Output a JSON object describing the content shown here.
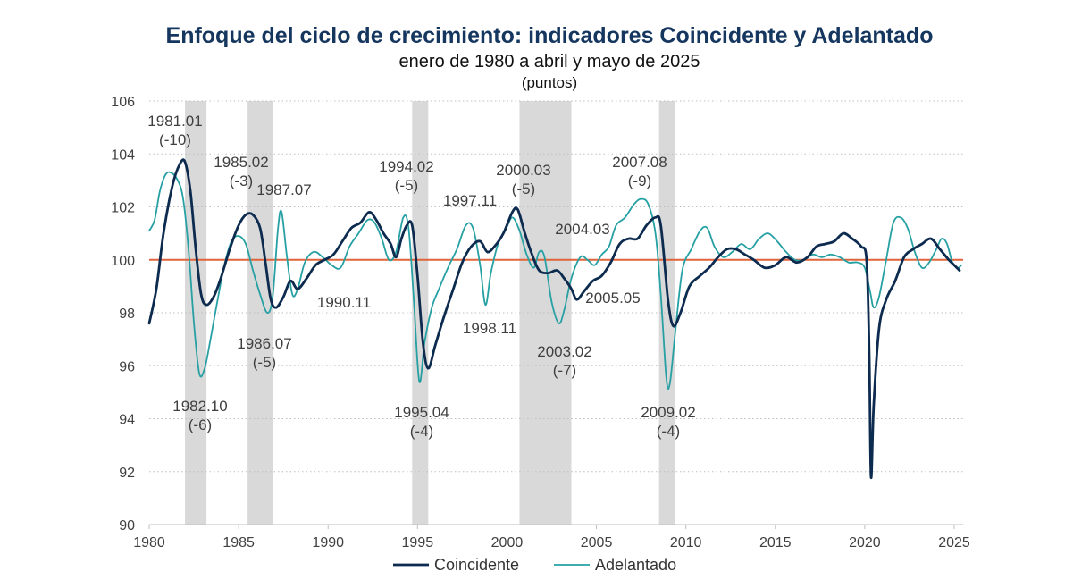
{
  "chart_data": {
    "type": "line",
    "title": "Enfoque del ciclo de crecimiento: indicadores Coincidente y Adelantado",
    "subtitle": "enero de 1980 a abril y mayo de 2025",
    "units": "(puntos)",
    "xlabel": "",
    "ylabel": "",
    "xlim": [
      1980,
      2025.5
    ],
    "ylim": [
      90,
      106
    ],
    "x_ticks": [
      1980,
      1985,
      1990,
      1995,
      2000,
      2005,
      2010,
      2015,
      2020,
      2025
    ],
    "y_ticks": [
      90,
      92,
      94,
      96,
      98,
      100,
      102,
      104,
      106
    ],
    "reference_line": {
      "y": 100,
      "color": "#e0643a"
    },
    "recession_bands": [
      [
        1982.0,
        1983.2
      ],
      [
        1985.5,
        1986.9
      ],
      [
        1994.7,
        1995.6
      ],
      [
        2000.7,
        2003.6
      ],
      [
        2008.5,
        2009.4
      ]
    ],
    "series": [
      {
        "name": "Coincidente",
        "color": "#0d2b4f",
        "points": [
          [
            1980.0,
            97.6
          ],
          [
            1980.4,
            98.9
          ],
          [
            1980.8,
            101.0
          ],
          [
            1981.3,
            102.8
          ],
          [
            1981.7,
            103.6
          ],
          [
            1982.0,
            103.7
          ],
          [
            1982.3,
            102.6
          ],
          [
            1982.6,
            100.4
          ],
          [
            1982.9,
            98.7
          ],
          [
            1983.2,
            98.3
          ],
          [
            1983.6,
            98.6
          ],
          [
            1984.0,
            99.3
          ],
          [
            1984.5,
            100.4
          ],
          [
            1985.0,
            101.3
          ],
          [
            1985.4,
            101.7
          ],
          [
            1985.8,
            101.7
          ],
          [
            1986.2,
            101.2
          ],
          [
            1986.5,
            99.9
          ],
          [
            1986.8,
            98.5
          ],
          [
            1987.1,
            98.2
          ],
          [
            1987.5,
            98.6
          ],
          [
            1987.9,
            99.2
          ],
          [
            1988.3,
            98.9
          ],
          [
            1988.8,
            99.3
          ],
          [
            1989.3,
            99.8
          ],
          [
            1989.8,
            100.0
          ],
          [
            1990.3,
            100.2
          ],
          [
            1990.8,
            100.7
          ],
          [
            1991.3,
            101.2
          ],
          [
            1991.8,
            101.4
          ],
          [
            1992.3,
            101.8
          ],
          [
            1992.7,
            101.5
          ],
          [
            1993.1,
            101.0
          ],
          [
            1993.5,
            100.6
          ],
          [
            1993.8,
            100.1
          ],
          [
            1994.1,
            100.8
          ],
          [
            1994.4,
            101.3
          ],
          [
            1994.7,
            101.3
          ],
          [
            1995.0,
            99.4
          ],
          [
            1995.3,
            96.9
          ],
          [
            1995.6,
            95.9
          ],
          [
            1996.0,
            96.8
          ],
          [
            1996.5,
            97.9
          ],
          [
            1997.0,
            98.9
          ],
          [
            1997.5,
            99.9
          ],
          [
            1998.0,
            100.5
          ],
          [
            1998.5,
            100.7
          ],
          [
            1998.9,
            100.3
          ],
          [
            1999.3,
            100.5
          ],
          [
            1999.8,
            101.0
          ],
          [
            2000.3,
            101.8
          ],
          [
            2000.6,
            101.9
          ],
          [
            2001.0,
            101.0
          ],
          [
            2001.4,
            100.2
          ],
          [
            2001.8,
            99.6
          ],
          [
            2002.3,
            99.5
          ],
          [
            2002.8,
            99.6
          ],
          [
            2003.2,
            99.3
          ],
          [
            2003.6,
            98.9
          ],
          [
            2003.9,
            98.5
          ],
          [
            2004.3,
            98.8
          ],
          [
            2004.8,
            99.2
          ],
          [
            2005.3,
            99.4
          ],
          [
            2005.8,
            99.9
          ],
          [
            2006.3,
            100.6
          ],
          [
            2006.8,
            100.8
          ],
          [
            2007.3,
            100.8
          ],
          [
            2007.8,
            101.3
          ],
          [
            2008.3,
            101.6
          ],
          [
            2008.6,
            101.3
          ],
          [
            2009.0,
            98.5
          ],
          [
            2009.3,
            97.5
          ],
          [
            2009.7,
            98.0
          ],
          [
            2010.2,
            99.0
          ],
          [
            2010.8,
            99.4
          ],
          [
            2011.3,
            99.7
          ],
          [
            2011.8,
            100.1
          ],
          [
            2012.3,
            100.4
          ],
          [
            2012.8,
            100.4
          ],
          [
            2013.3,
            100.2
          ],
          [
            2013.8,
            100.0
          ],
          [
            2014.4,
            99.7
          ],
          [
            2015.0,
            99.8
          ],
          [
            2015.6,
            100.1
          ],
          [
            2016.2,
            99.9
          ],
          [
            2016.8,
            100.1
          ],
          [
            2017.3,
            100.5
          ],
          [
            2017.8,
            100.6
          ],
          [
            2018.3,
            100.7
          ],
          [
            2018.8,
            101.0
          ],
          [
            2019.3,
            100.8
          ],
          [
            2019.8,
            100.5
          ],
          [
            2020.1,
            100.0
          ],
          [
            2020.25,
            96.5
          ],
          [
            2020.35,
            91.8
          ],
          [
            2020.5,
            94.5
          ],
          [
            2020.8,
            97.4
          ],
          [
            2021.2,
            98.5
          ],
          [
            2021.7,
            99.2
          ],
          [
            2022.2,
            100.1
          ],
          [
            2022.7,
            100.4
          ],
          [
            2023.2,
            100.6
          ],
          [
            2023.7,
            100.8
          ],
          [
            2024.2,
            100.4
          ],
          [
            2024.7,
            100.0
          ],
          [
            2025.0,
            99.8
          ],
          [
            2025.3,
            99.6
          ]
        ]
      },
      {
        "name": "Adelantado",
        "color": "#26a0a3",
        "points": [
          [
            1980.0,
            101.1
          ],
          [
            1980.3,
            101.5
          ],
          [
            1980.6,
            102.6
          ],
          [
            1980.9,
            103.2
          ],
          [
            1981.2,
            103.3
          ],
          [
            1981.6,
            103.0
          ],
          [
            1981.9,
            102.3
          ],
          [
            1982.2,
            100.4
          ],
          [
            1982.5,
            97.6
          ],
          [
            1982.8,
            95.7
          ],
          [
            1983.1,
            95.9
          ],
          [
            1983.4,
            96.9
          ],
          [
            1983.8,
            98.4
          ],
          [
            1984.2,
            99.8
          ],
          [
            1984.6,
            100.7
          ],
          [
            1985.0,
            100.9
          ],
          [
            1985.4,
            100.6
          ],
          [
            1985.8,
            99.6
          ],
          [
            1986.2,
            98.7
          ],
          [
            1986.6,
            98.0
          ],
          [
            1986.9,
            98.6
          ],
          [
            1987.2,
            101.2
          ],
          [
            1987.4,
            101.8
          ],
          [
            1987.7,
            100.1
          ],
          [
            1988.0,
            98.7
          ],
          [
            1988.3,
            98.9
          ],
          [
            1988.7,
            99.9
          ],
          [
            1989.2,
            100.3
          ],
          [
            1989.7,
            100.1
          ],
          [
            1990.2,
            99.8
          ],
          [
            1990.7,
            99.7
          ],
          [
            1991.2,
            100.5
          ],
          [
            1991.7,
            101.0
          ],
          [
            1992.2,
            101.5
          ],
          [
            1992.6,
            101.4
          ],
          [
            1993.0,
            100.8
          ],
          [
            1993.4,
            100.0
          ],
          [
            1993.8,
            100.3
          ],
          [
            1994.2,
            101.6
          ],
          [
            1994.5,
            101.2
          ],
          [
            1994.8,
            98.4
          ],
          [
            1995.1,
            95.4
          ],
          [
            1995.4,
            96.9
          ],
          [
            1995.8,
            98.2
          ],
          [
            1996.2,
            98.9
          ],
          [
            1996.7,
            99.7
          ],
          [
            1997.2,
            100.4
          ],
          [
            1997.7,
            101.3
          ],
          [
            1998.1,
            101.2
          ],
          [
            1998.5,
            99.8
          ],
          [
            1998.8,
            98.3
          ],
          [
            1999.1,
            99.5
          ],
          [
            1999.5,
            100.6
          ],
          [
            1999.9,
            101.1
          ],
          [
            2000.3,
            101.6
          ],
          [
            2000.7,
            101.1
          ],
          [
            2001.1,
            100.2
          ],
          [
            2001.5,
            99.7
          ],
          [
            2001.8,
            100.3
          ],
          [
            2002.1,
            100.1
          ],
          [
            2002.5,
            98.4
          ],
          [
            2002.9,
            97.6
          ],
          [
            2003.2,
            98.1
          ],
          [
            2003.6,
            99.3
          ],
          [
            2004.1,
            100.1
          ],
          [
            2004.5,
            100.0
          ],
          [
            2004.9,
            99.8
          ],
          [
            2005.3,
            100.2
          ],
          [
            2005.7,
            100.5
          ],
          [
            2006.1,
            101.3
          ],
          [
            2006.6,
            101.6
          ],
          [
            2007.1,
            102.1
          ],
          [
            2007.5,
            102.3
          ],
          [
            2007.9,
            102.1
          ],
          [
            2008.3,
            101.0
          ],
          [
            2008.6,
            98.7
          ],
          [
            2008.9,
            95.6
          ],
          [
            2009.1,
            95.3
          ],
          [
            2009.4,
            97.2
          ],
          [
            2009.8,
            99.6
          ],
          [
            2010.3,
            100.4
          ],
          [
            2010.8,
            101.1
          ],
          [
            2011.2,
            101.2
          ],
          [
            2011.6,
            100.5
          ],
          [
            2012.1,
            100.1
          ],
          [
            2012.6,
            100.3
          ],
          [
            2013.1,
            100.6
          ],
          [
            2013.6,
            100.4
          ],
          [
            2014.1,
            100.8
          ],
          [
            2014.6,
            101.0
          ],
          [
            2015.1,
            100.7
          ],
          [
            2015.6,
            100.3
          ],
          [
            2016.1,
            100.0
          ],
          [
            2016.6,
            100.0
          ],
          [
            2017.1,
            100.2
          ],
          [
            2017.6,
            100.1
          ],
          [
            2018.1,
            100.2
          ],
          [
            2018.6,
            100.1
          ],
          [
            2019.1,
            99.9
          ],
          [
            2019.6,
            99.9
          ],
          [
            2020.0,
            99.7
          ],
          [
            2020.3,
            98.8
          ],
          [
            2020.5,
            98.2
          ],
          [
            2020.8,
            98.6
          ],
          [
            2021.2,
            100.0
          ],
          [
            2021.6,
            101.4
          ],
          [
            2022.0,
            101.6
          ],
          [
            2022.4,
            101.2
          ],
          [
            2022.8,
            100.3
          ],
          [
            2023.2,
            99.7
          ],
          [
            2023.6,
            99.9
          ],
          [
            2024.0,
            100.4
          ],
          [
            2024.3,
            100.8
          ],
          [
            2024.6,
            100.6
          ],
          [
            2024.9,
            99.9
          ],
          [
            2025.2,
            99.7
          ],
          [
            2025.4,
            99.8
          ]
        ]
      }
    ],
    "annotations": [
      {
        "lines": [
          "1981.01",
          "(-10)"
        ]
      },
      {
        "lines": [
          "1982.10",
          "(-6)"
        ]
      },
      {
        "lines": [
          "1985.02",
          "(-3)"
        ]
      },
      {
        "lines": [
          "1987.07"
        ]
      },
      {
        "lines": [
          "1986.07",
          "(-5)"
        ]
      },
      {
        "lines": [
          "1990.11"
        ]
      },
      {
        "lines": [
          "1994.02",
          "(-5)"
        ]
      },
      {
        "lines": [
          "1995.04",
          "(-4)"
        ]
      },
      {
        "lines": [
          "1997.11"
        ]
      },
      {
        "lines": [
          "1998.11"
        ]
      },
      {
        "lines": [
          "2000.03",
          "(-5)"
        ]
      },
      {
        "lines": [
          "2004.03"
        ]
      },
      {
        "lines": [
          "2005.05"
        ]
      },
      {
        "lines": [
          "2003.02",
          "(-7)"
        ]
      },
      {
        "lines": [
          "2007.08",
          "(-9)"
        ]
      },
      {
        "lines": [
          "2009.02",
          "(-4)"
        ]
      }
    ],
    "legend": {
      "position": "bottom",
      "entries": [
        "Coincidente",
        "Adelantado"
      ]
    }
  }
}
